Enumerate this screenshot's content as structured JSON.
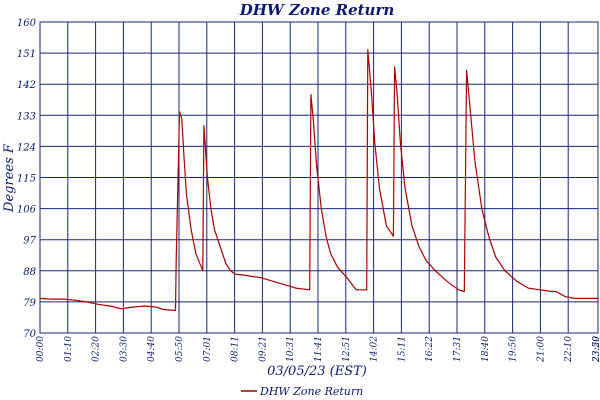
{
  "chart_data": {
    "type": "line",
    "title": "DHW Zone Return",
    "xlabel": "03/05/23 (EST)",
    "ylabel": "Degrees F",
    "ylim": [
      70,
      160
    ],
    "yticks": [
      "70",
      "79",
      "88",
      "97",
      "106",
      "115",
      "124",
      "133",
      "142",
      "151",
      "160"
    ],
    "xticks": [
      "00:00",
      "01:10",
      "02:20",
      "03:30",
      "04:40",
      "05:50",
      "07:01",
      "08:11",
      "09:21",
      "10:31",
      "11:41",
      "12:51",
      "14:02",
      "15:11",
      "16:22",
      "17:31",
      "18:40",
      "19:50",
      "21:00",
      "22:10",
      "23:20",
      "23:59"
    ],
    "grid": true,
    "legend_position": "bottom",
    "color": "#aa0000",
    "grid_color": "#1a237e",
    "series": [
      {
        "name": "DHW Zone Return",
        "x": [
          0,
          0.5,
          1.0,
          1.5,
          2.0,
          2.5,
          3.0,
          3.5,
          4.0,
          4.5,
          5.0,
          5.3,
          5.83,
          5.86,
          6.0,
          6.1,
          6.2,
          6.3,
          6.5,
          6.7,
          7.0,
          7.05,
          7.2,
          7.35,
          7.5,
          7.7,
          8.0,
          8.2,
          8.4,
          8.7,
          9.0,
          9.5,
          10.0,
          10.5,
          11.0,
          11.6,
          11.65,
          11.75,
          11.9,
          12.1,
          12.3,
          12.5,
          12.8,
          13.2,
          13.6,
          14.05,
          14.1,
          14.25,
          14.4,
          14.6,
          14.9,
          15.2,
          15.25,
          15.35,
          15.5,
          15.7,
          16.0,
          16.3,
          16.6,
          17.0,
          17.5,
          18.0,
          18.25,
          18.35,
          18.5,
          18.7,
          19.0,
          19.3,
          19.6,
          20.0,
          20.5,
          21.0,
          21.5,
          22.0,
          22.2,
          22.6,
          23.0,
          23.5,
          23.98
        ],
        "y": [
          80,
          79.8,
          79.8,
          79.5,
          79,
          78.3,
          77.8,
          77,
          77.5,
          77.8,
          77.5,
          76.8,
          76.5,
          91,
          134,
          132,
          120,
          110,
          100,
          93,
          88,
          130,
          115,
          106,
          100,
          96,
          90,
          88,
          87,
          86.8,
          86.5,
          86,
          85,
          84,
          83,
          82.5,
          139,
          132,
          118,
          106,
          98,
          93,
          89,
          86,
          82.5,
          82.5,
          152,
          140,
          125,
          112,
          101,
          98,
          147,
          140,
          125,
          112,
          101,
          95,
          91,
          88,
          85,
          82.5,
          82,
          146,
          135,
          120,
          106,
          98,
          92,
          88,
          85,
          83,
          82.5,
          82,
          82,
          80.5,
          80,
          80,
          80
        ]
      }
    ]
  }
}
